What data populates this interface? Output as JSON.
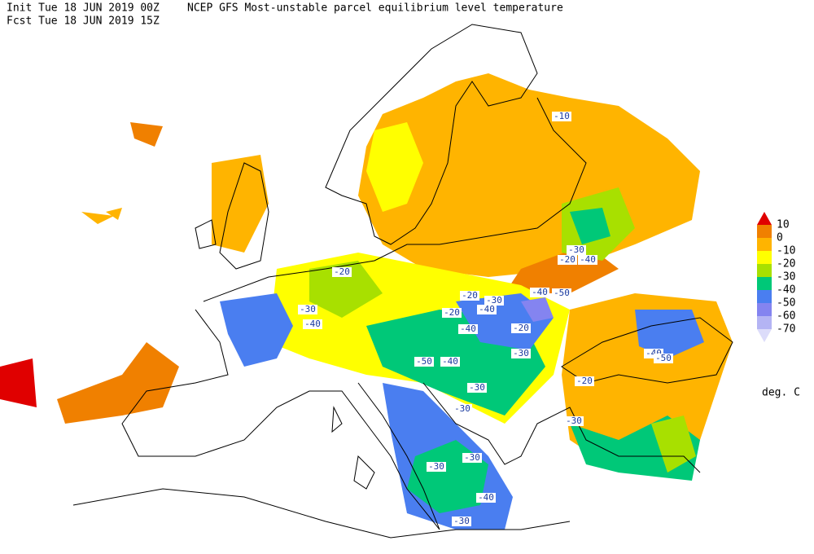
{
  "header": {
    "init": "Init  Tue 18 JUN 2019 00Z",
    "title": "NCEP GFS Most-unstable parcel equilibrium level temperature",
    "forecast": "Fcst Tue 18 JUN 2019 15Z"
  },
  "legend": {
    "levels": [
      10,
      0,
      -10,
      -20,
      -30,
      -40,
      -50,
      -60,
      -70
    ],
    "colors": [
      "#e00000",
      "#f08000",
      "#ffb400",
      "#ffff00",
      "#a8e000",
      "#00c878",
      "#4a7ef0",
      "#8484f0",
      "#b4b4f4",
      "#dcdcfa"
    ],
    "unit": "deg. C"
  },
  "contour_labels": [
    -10,
    -20,
    -30,
    -40,
    -30,
    -20,
    -40,
    -40,
    -50,
    -20,
    -30,
    -20,
    -40,
    -40,
    -20,
    -30,
    -50,
    -40,
    -30,
    -30,
    -40,
    -50,
    -20,
    -30,
    -30,
    -30,
    -40,
    -30
  ]
}
